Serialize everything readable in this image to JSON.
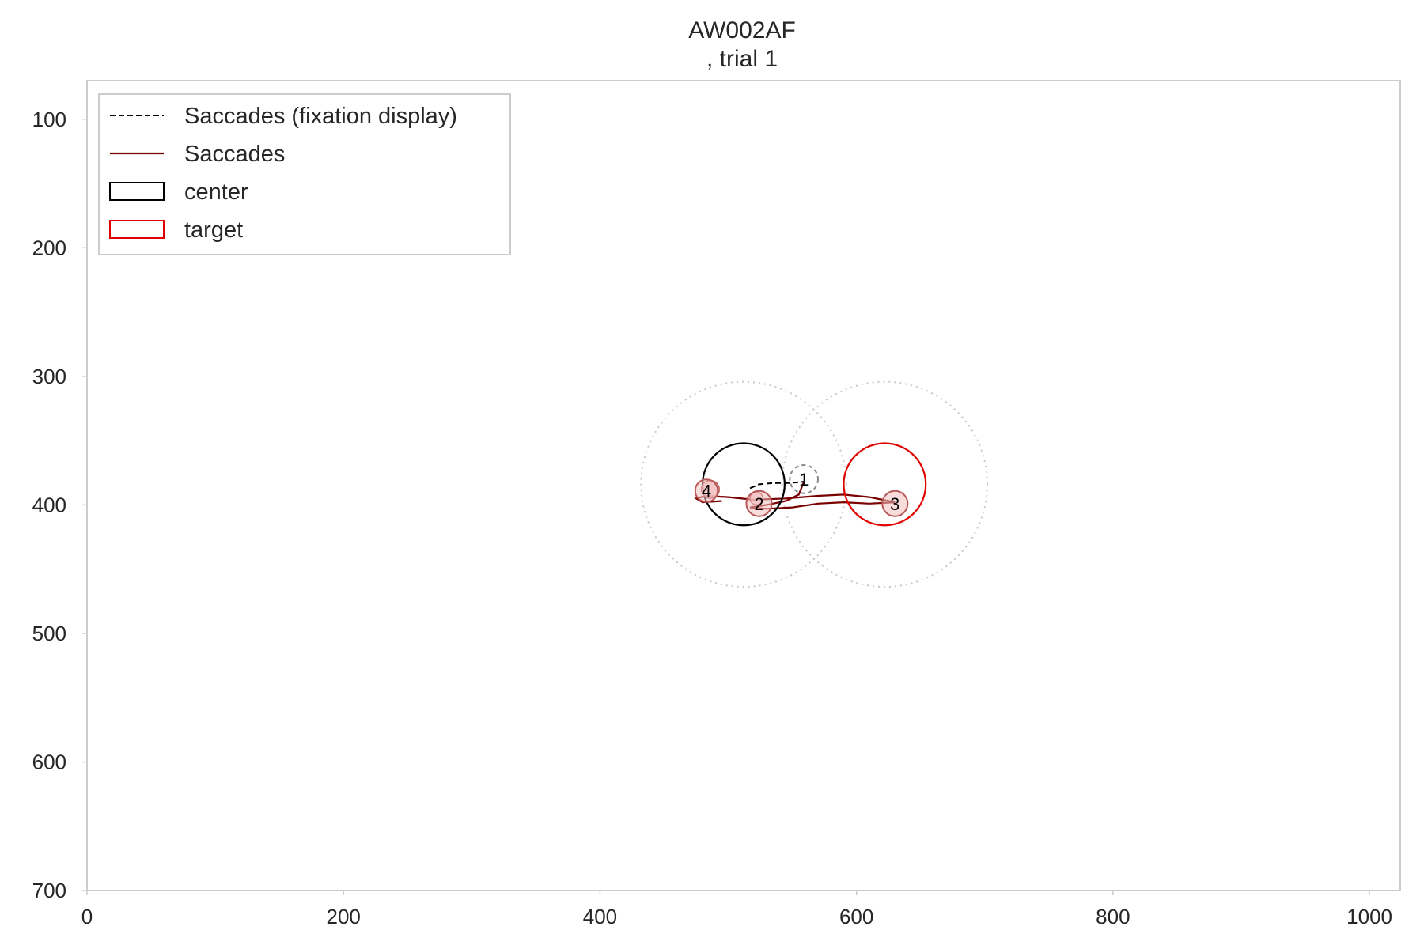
{
  "chart_data": {
    "type": "scatter",
    "title": "AW002AF",
    "subtitle": ", trial 1",
    "xlabel": "",
    "ylabel": "",
    "xlim": [
      0,
      1024
    ],
    "ylim": [
      700,
      70
    ],
    "y_inverted": true,
    "grid": false,
    "legend_placement": "upper-left",
    "x_ticks": [
      0,
      200,
      400,
      600,
      800,
      1000
    ],
    "y_ticks": [
      100,
      200,
      300,
      400,
      500,
      600,
      700
    ],
    "legend": [
      {
        "label": "Saccades (fixation display)",
        "style": "dashed-line",
        "color": "#000000"
      },
      {
        "label": "Saccades",
        "style": "solid-line",
        "color": "#7a0000"
      },
      {
        "label": "center",
        "style": "box",
        "color": "#000000"
      },
      {
        "label": "target",
        "style": "box",
        "color": "#e00000"
      }
    ],
    "regions": [
      {
        "name": "center",
        "x": 512,
        "y": 384,
        "r": 20,
        "color": "#000000"
      },
      {
        "name": "target",
        "x": 622,
        "y": 384,
        "r": 20,
        "color": "#e00000"
      }
    ],
    "tolerance_circles": [
      {
        "x": 512,
        "y": 384,
        "r": 80
      },
      {
        "x": 622,
        "y": 384,
        "r": 80
      }
    ],
    "fixations": [
      {
        "label": "1",
        "x": 559,
        "y": 380,
        "r": 10,
        "style": "dashed"
      },
      {
        "label": "2",
        "x": 524,
        "y": 399,
        "r": 9,
        "style": "solid"
      },
      {
        "label": "3",
        "x": 630,
        "y": 399,
        "r": 9,
        "style": "solid"
      },
      {
        "label": "4",
        "x": 483,
        "y": 389,
        "r": 8,
        "style": "solid"
      }
    ],
    "extra_markers": [
      {
        "x": 486,
        "y": 388,
        "r": 7
      },
      {
        "x": 522,
        "y": 395,
        "r": 5
      }
    ],
    "saccade_fixation_display": [
      [
        517,
        387
      ],
      [
        524,
        384
      ],
      [
        535,
        383
      ],
      [
        548,
        383
      ],
      [
        559,
        382
      ]
    ],
    "saccades": [
      [
        [
          559,
          382
        ],
        [
          555,
          392
        ],
        [
          545,
          397
        ],
        [
          530,
          400
        ],
        [
          517,
          402
        ]
      ],
      [
        [
          517,
          402
        ],
        [
          530,
          403
        ],
        [
          550,
          402
        ],
        [
          570,
          399
        ],
        [
          590,
          398
        ],
        [
          610,
          399
        ],
        [
          630,
          398
        ]
      ],
      [
        [
          630,
          398
        ],
        [
          610,
          394
        ],
        [
          590,
          392
        ],
        [
          570,
          393
        ],
        [
          545,
          395
        ],
        [
          520,
          396
        ],
        [
          500,
          394
        ],
        [
          483,
          393
        ]
      ],
      [
        [
          483,
          393
        ],
        [
          475,
          395
        ],
        [
          480,
          398
        ],
        [
          495,
          397
        ]
      ]
    ]
  },
  "colors": {
    "tolerance": "#c8c8c8",
    "fixation_fill": "#f2c0c0",
    "fixation_edge": "#b85858",
    "fixation_dashed_edge": "#888888",
    "saccade": "#7a0000",
    "axis_frame": "#cccccc"
  }
}
